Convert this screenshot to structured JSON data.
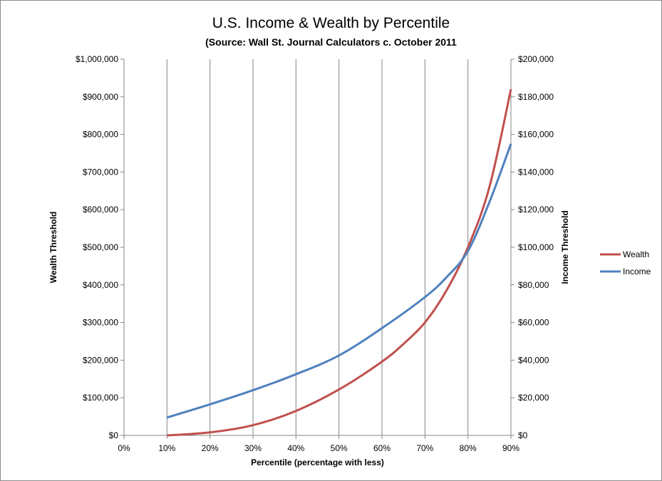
{
  "chart_data": {
    "type": "line",
    "title": "U.S. Income & Wealth by Percentile",
    "subtitle": "(Source: Wall St. Journal Calculators c. October 2011",
    "xlabel": "Percentile (percentage with less)",
    "ylabel": "Wealth Threshold",
    "y2label": "Income Threshold",
    "x_ticks": [
      "0%",
      "10%",
      "20%",
      "30%",
      "40%",
      "50%",
      "60%",
      "70%",
      "80%",
      "90%"
    ],
    "xlim": [
      0,
      90
    ],
    "ylim": [
      0,
      1000000
    ],
    "y2lim": [
      0,
      200000
    ],
    "y_ticks": [
      "$0",
      "$100,000",
      "$200,000",
      "$300,000",
      "$400,000",
      "$500,000",
      "$600,000",
      "$700,000",
      "$800,000",
      "$900,000",
      "$1,000,000"
    ],
    "y2_ticks": [
      "$0",
      "$20,000",
      "$40,000",
      "$60,000",
      "$80,000",
      "$100,000",
      "$120,000",
      "$140,000",
      "$160,000",
      "$180,000",
      "$200,000"
    ],
    "grid": "vertical",
    "legend_position": "right",
    "series": [
      {
        "name": "Wealth",
        "axis": "left",
        "color": "#c0504d",
        "x": [
          10,
          20,
          30,
          40,
          50,
          60,
          65,
          70,
          75,
          80,
          85,
          90
        ],
        "y": [
          0,
          8000,
          27000,
          65000,
          122000,
          196000,
          243000,
          300000,
          385000,
          500000,
          660000,
          920000
        ]
      },
      {
        "name": "Income",
        "axis": "right",
        "color": "#4f81bd",
        "x": [
          10,
          20,
          30,
          40,
          50,
          60,
          70,
          75,
          80,
          85,
          90
        ],
        "y": [
          9500,
          16500,
          24000,
          32500,
          42500,
          57000,
          73500,
          84000,
          98000,
          124000,
          155000
        ]
      }
    ]
  }
}
